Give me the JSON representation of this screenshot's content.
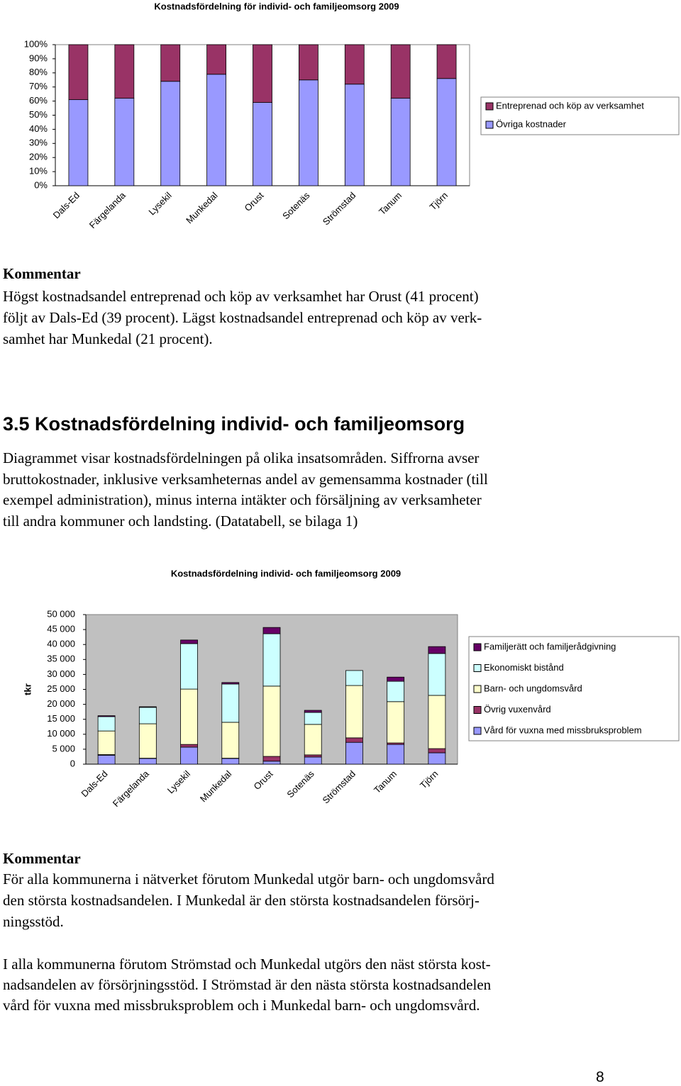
{
  "chart_data": [
    {
      "type": "bar",
      "stacked": true,
      "title": "Kostnadsfördelning för individ- och familjeomsorg 2009",
      "categories": [
        "Dals-Ed",
        "Färgelanda",
        "Lysekil",
        "Munkedal",
        "Orust",
        "Sotenäs",
        "Strömstad",
        "Tanum",
        "Tjörn"
      ],
      "series": [
        {
          "name": "Övriga kostnader",
          "color": "#9999ff",
          "values": [
            61,
            62,
            74,
            79,
            59,
            75,
            72,
            62,
            76
          ]
        },
        {
          "name": "Entreprenad och köp av verksamhet",
          "color": "#993366",
          "values": [
            39,
            38,
            26,
            21,
            41,
            25,
            28,
            38,
            24
          ]
        }
      ],
      "ylim": [
        0,
        100
      ],
      "yticks": [
        {
          "value": 0,
          "label": "0%"
        },
        {
          "value": 10,
          "label": "10%"
        },
        {
          "value": 20,
          "label": "20%"
        },
        {
          "value": 30,
          "label": "30%"
        },
        {
          "value": 40,
          "label": "40%"
        },
        {
          "value": 50,
          "label": "50%"
        },
        {
          "value": 60,
          "label": "60%"
        },
        {
          "value": 70,
          "label": "70%"
        },
        {
          "value": 80,
          "label": "80%"
        },
        {
          "value": 90,
          "label": "90%"
        },
        {
          "value": 100,
          "label": "100%"
        }
      ],
      "grid": false,
      "plot_background": "#ffffff",
      "legend": "right"
    },
    {
      "type": "bar",
      "stacked": true,
      "title": "Kostnadsfördelning individ- och familjeomsorg 2009",
      "y_label": "tkr",
      "categories": [
        "Dals-Ed",
        "Färgelanda",
        "Lysekil",
        "Munkedal",
        "Orust",
        "Sotenäs",
        "Strömstad",
        "Tanum",
        "Tjörn"
      ],
      "series": [
        {
          "name": "Vård för vuxna med missbruksproblem",
          "color": "#9999ff",
          "values": [
            3000,
            1900,
            5700,
            1900,
            1000,
            2400,
            7300,
            6600,
            3800
          ]
        },
        {
          "name": "Övrig vuxenvård",
          "color": "#993366",
          "values": [
            200,
            100,
            900,
            100,
            1600,
            700,
            1500,
            500,
            1400
          ]
        },
        {
          "name": "Barn- och ungdomsvård",
          "color": "#ffffcc",
          "values": [
            7900,
            11500,
            18500,
            12000,
            23500,
            10200,
            17500,
            13800,
            17800
          ]
        },
        {
          "name": "Ekonomiskt bistånd",
          "color": "#ccffff",
          "values": [
            4800,
            5500,
            15200,
            12800,
            17500,
            4000,
            5000,
            6800,
            14000
          ]
        },
        {
          "name": "Familjerätt och familjerådgivning",
          "color": "#660066",
          "values": [
            300,
            200,
            1200,
            500,
            2100,
            700,
            0,
            1400,
            2300
          ]
        }
      ],
      "ylim": [
        0,
        50000
      ],
      "yticks": [
        0,
        {
          "value": 5000,
          "label": "5 000"
        },
        {
          "value": 10000,
          "label": "10 000"
        },
        {
          "value": 15000,
          "label": "15 000"
        },
        {
          "value": 20000,
          "label": "20 000"
        },
        {
          "value": 25000,
          "label": "25 000"
        },
        {
          "value": 30000,
          "label": "30 000"
        },
        {
          "value": 35000,
          "label": "35 000"
        },
        {
          "value": 40000,
          "label": "40 000"
        },
        {
          "value": 45000,
          "label": "45 000"
        },
        {
          "value": 50000,
          "label": "50 000"
        }
      ],
      "grid": false,
      "plot_background": "#c0c0c0",
      "legend": "right"
    }
  ],
  "comment1": {
    "heading": "Kommentar",
    "lines": [
      "Högst kostnadsandel entreprenad och köp av verksamhet har Orust (41 procent)",
      "följt av Dals-Ed (39 procent). Lägst kostnadsandel entreprenad och köp av verk-",
      "samhet har Munkedal (21 procent)."
    ]
  },
  "section": {
    "heading": "3.5 Kostnadsfördelning individ- och familjeomsorg",
    "lines": [
      "Diagrammet visar kostnadsfördelningen på olika insatsområden. Siffrorna avser",
      "bruttokostnader, inklusive verksamheternas andel av gemensamma kostnader (till",
      "exempel administration), minus interna intäkter och försäljning av verksamheter",
      "till andra kommuner och landsting. (Datatabell, se bilaga 1)"
    ]
  },
  "comment2": {
    "heading": "Kommentar",
    "paragraphs": [
      [
        "För alla kommunerna i nätverket förutom Munkedal utgör barn- och ungdomsvård",
        "den största kostnadsandelen. I Munkedal är den största kostnadsandelen försörj-",
        "ningsstöd."
      ],
      [
        "I alla kommunerna förutom Strömstad och Munkedal utgörs den näst största kost-",
        "nadsandelen av försörjningsstöd. I Strömstad är den nästa största kostnadsandelen",
        "vård för vuxna med missbruksproblem och i Munkedal barn- och ungdomsvård."
      ]
    ]
  },
  "page_number": "8"
}
